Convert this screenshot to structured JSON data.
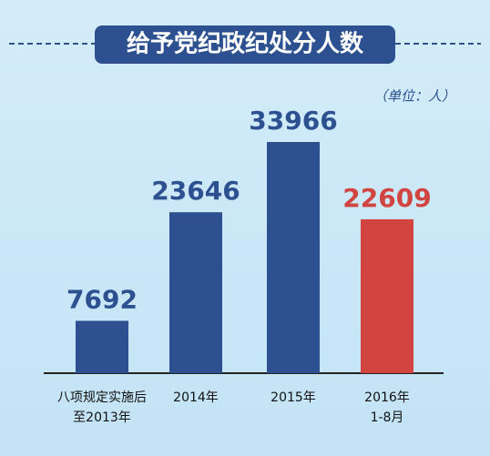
{
  "chart_data": {
    "type": "bar",
    "title": "给予党纪政纪处分人数",
    "subtitle": "（单位：人）",
    "categories": [
      [
        "八项规定实施后",
        "至2013年"
      ],
      [
        "2014年"
      ],
      [
        "2015年"
      ],
      [
        "2016年",
        "1-8月"
      ]
    ],
    "values": [
      7692,
      23646,
      33966,
      22609
    ],
    "colors": [
      "#2d5190",
      "#2d5190",
      "#2d5190",
      "#d1443f"
    ]
  }
}
